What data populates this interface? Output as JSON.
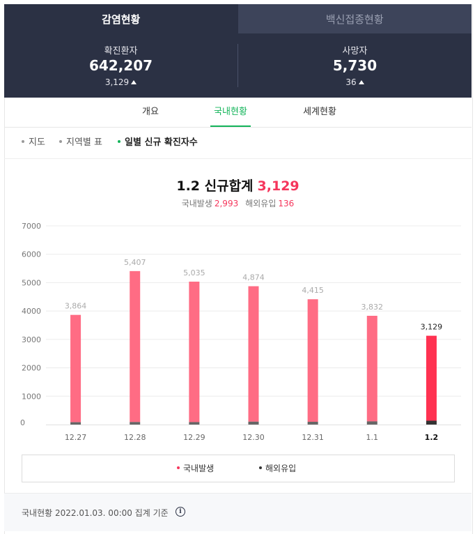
{
  "tabs": [
    {
      "label": "감염현황",
      "active": true
    },
    {
      "label": "백신접종현황",
      "active": false
    }
  ],
  "summary": {
    "confirmed": {
      "label": "확진환자",
      "value": "642,207",
      "delta": "3,129"
    },
    "deaths": {
      "label": "사망자",
      "value": "5,730",
      "delta": "36"
    }
  },
  "sub_tabs": [
    "개요",
    "국내현황",
    "세계현황"
  ],
  "filters": [
    "지도",
    "지역별 표",
    "일별 신규 확진자수"
  ],
  "chart_header": {
    "title": "1.2 신규합계",
    "total": "3,129",
    "domestic_label": "국내발생",
    "domestic_value": "2,993",
    "overseas_label": "해외유입",
    "overseas_value": "136"
  },
  "chart_data": {
    "type": "bar",
    "categories": [
      "12.27",
      "12.28",
      "12.29",
      "12.30",
      "12.31",
      "1.1",
      "1.2"
    ],
    "series": [
      {
        "name": "국내발생",
        "values": [
          3781,
          5318,
          4948,
          4772,
          4317,
          3720,
          2993
        ]
      },
      {
        "name": "해외유입",
        "values": [
          83,
          89,
          87,
          102,
          98,
          112,
          136
        ]
      }
    ],
    "totals": [
      3864,
      5407,
      5035,
      4874,
      4415,
      3832,
      3129
    ],
    "total_labels": [
      "3,864",
      "5,407",
      "5,035",
      "4,874",
      "4,415",
      "3,832",
      "3,129"
    ],
    "yticks": [
      0,
      1000,
      2000,
      3000,
      4000,
      5000,
      6000,
      7000
    ],
    "ylim": [
      0,
      7000
    ],
    "grid": true,
    "highlight_index": 6,
    "colors": {
      "domestic": "#ff6c84",
      "domestic_highlight": "#ff3251",
      "overseas": "#666666",
      "overseas_highlight": "#333333"
    }
  },
  "legend": [
    {
      "label": "국내발생",
      "color": "#f5365c"
    },
    {
      "label": "해외유입",
      "color": "#333333"
    }
  ],
  "footer": {
    "text": "국내현황 2022.01.03. 00:00 집계 기준",
    "icon": "info-icon"
  }
}
